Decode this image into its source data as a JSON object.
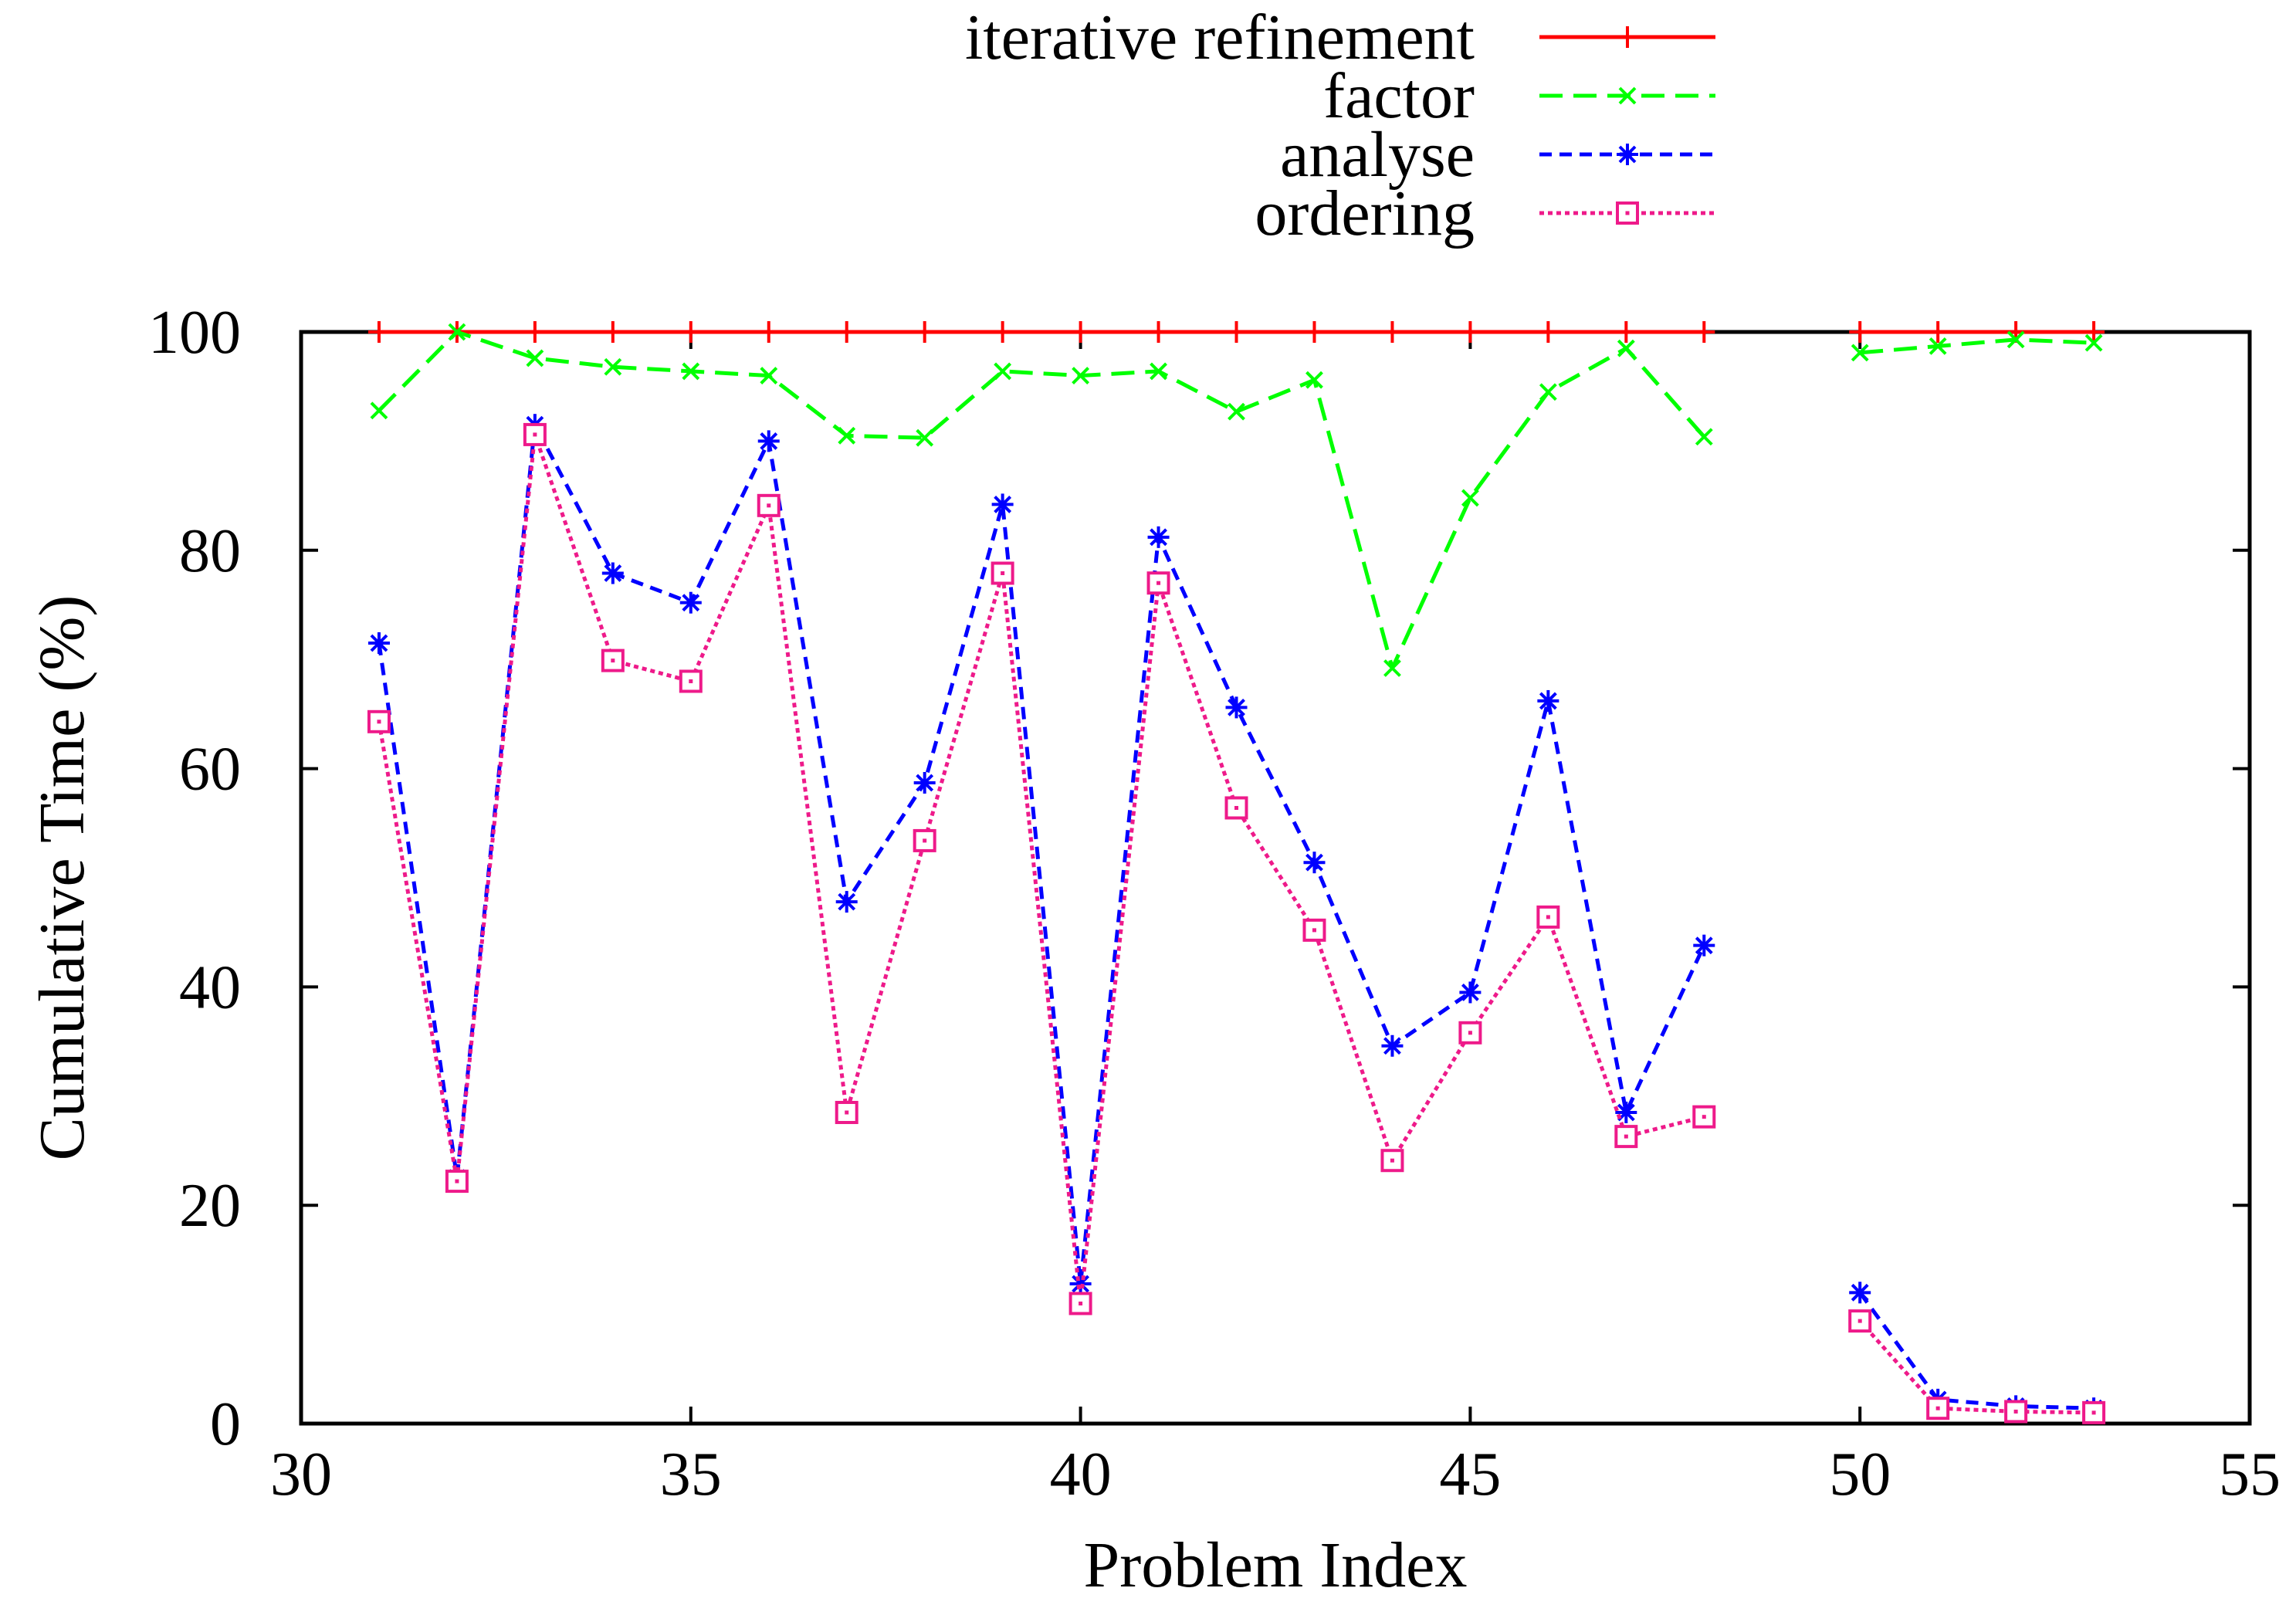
{
  "chart_data": {
    "type": "line",
    "title": "",
    "xlabel": "Problem Index",
    "ylabel": "Cumulative Time (%)",
    "xlim": [
      30,
      55
    ],
    "ylim": [
      0,
      100
    ],
    "xticks": [
      "30",
      "35",
      "40",
      "45",
      "50",
      "55"
    ],
    "yticks": [
      "0",
      "20",
      "40",
      "60",
      "80",
      "100"
    ],
    "legend_position": "top-center",
    "grid": false,
    "series": [
      {
        "name": "iterative refinement",
        "color": "#ff0000",
        "dash": "solid",
        "marker": "plus",
        "points": [
          [
            31,
            100
          ],
          [
            32,
            100
          ],
          [
            33,
            100
          ],
          [
            34,
            100
          ],
          [
            35,
            100
          ],
          [
            36,
            100
          ],
          [
            37,
            100
          ],
          [
            38,
            100
          ],
          [
            39,
            100
          ],
          [
            40,
            100
          ],
          [
            41,
            100
          ],
          [
            42,
            100
          ],
          [
            43,
            100
          ],
          [
            44,
            100
          ],
          [
            45,
            100
          ],
          [
            46,
            100
          ],
          [
            47,
            100
          ],
          [
            48,
            100
          ],
          null,
          [
            50,
            100
          ],
          [
            51,
            100
          ],
          [
            52,
            100
          ],
          [
            53,
            100
          ]
        ]
      },
      {
        "name": "factor",
        "color": "#00ff00",
        "dash": "long",
        "marker": "x",
        "points": [
          [
            31,
            92.8
          ],
          [
            32,
            100
          ],
          [
            33,
            97.6
          ],
          [
            34,
            96.8
          ],
          [
            35,
            96.4
          ],
          [
            36,
            96.0
          ],
          [
            37,
            90.5
          ],
          [
            38,
            90.3
          ],
          [
            39,
            96.4
          ],
          [
            40,
            96.0
          ],
          [
            41,
            96.4
          ],
          [
            42,
            92.7
          ],
          [
            43,
            95.6
          ],
          [
            44,
            69.2
          ],
          [
            45,
            84.8
          ],
          [
            46,
            94.5
          ],
          [
            47,
            98.5
          ],
          [
            48,
            90.4
          ],
          null,
          [
            50,
            98.1
          ],
          [
            51,
            98.7
          ],
          [
            52,
            99.3
          ],
          [
            53,
            99.0
          ]
        ]
      },
      {
        "name": "analyse",
        "color": "#0000ff",
        "dash": "medium",
        "marker": "star",
        "points": [
          [
            31,
            71.5
          ],
          [
            32,
            22.5
          ],
          [
            33,
            91.5
          ],
          [
            34,
            77.9
          ],
          [
            35,
            75.2
          ],
          [
            36,
            90.0
          ],
          [
            37,
            47.8
          ],
          [
            38,
            58.7
          ],
          [
            39,
            84.2
          ],
          [
            40,
            12.8
          ],
          [
            41,
            81.2
          ],
          [
            42,
            65.6
          ],
          [
            43,
            51.4
          ],
          [
            44,
            34.6
          ],
          [
            45,
            39.5
          ],
          [
            46,
            66.2
          ],
          [
            47,
            28.5
          ],
          [
            48,
            43.8
          ],
          null,
          [
            50,
            12.0
          ],
          [
            51,
            2.2
          ],
          [
            52,
            1.6
          ],
          [
            53,
            1.4
          ]
        ]
      },
      {
        "name": "ordering",
        "color": "#ee1a8a",
        "dash": "dotted",
        "marker": "square",
        "points": [
          [
            31,
            64.3
          ],
          [
            32,
            22.2
          ],
          [
            33,
            90.6
          ],
          [
            34,
            69.9
          ],
          [
            35,
            68.0
          ],
          [
            36,
            84.1
          ],
          [
            37,
            28.5
          ],
          [
            38,
            53.4
          ],
          [
            39,
            77.9
          ],
          [
            40,
            11.0
          ],
          [
            41,
            77.0
          ],
          [
            42,
            56.4
          ],
          [
            43,
            45.2
          ],
          [
            44,
            24.1
          ],
          [
            45,
            35.8
          ],
          [
            46,
            46.4
          ],
          [
            47,
            26.3
          ],
          [
            48,
            28.1
          ],
          null,
          [
            50,
            9.4
          ],
          [
            51,
            1.4
          ],
          [
            52,
            1.1
          ],
          [
            53,
            1.0
          ]
        ]
      }
    ]
  }
}
